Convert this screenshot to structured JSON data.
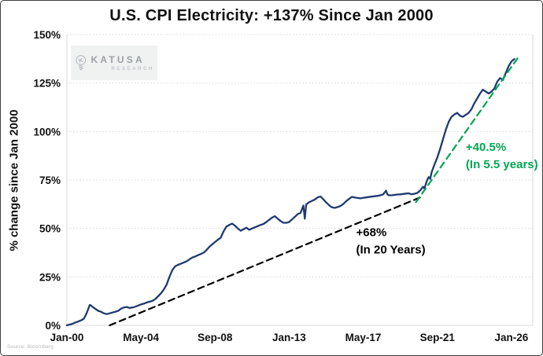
{
  "header": {
    "title": "U.S. CPI Electricity: +137% Since Jan 2000"
  },
  "watermark": {
    "brand": "KATUSA",
    "sub": "RESEARCH",
    "icon": "lightbulb-k-icon",
    "color": "#9aa1a7"
  },
  "footer": {
    "source": "Source: Bloomberg"
  },
  "colors": {
    "cpi_line": "#1f3a70",
    "trend_20y": "#000000",
    "trend_5y": "#00a651",
    "grid": "#d9d9d9",
    "text": "#111111"
  },
  "chart_data": {
    "type": "line",
    "title": "U.S. CPI Electricity: +137% Since Jan 2000",
    "xlabel": "",
    "ylabel": "% change since Jan 2000",
    "x_unit": "months since Jan 2000",
    "ylim": [
      0,
      150
    ],
    "xlim_months": [
      0,
      327
    ],
    "grid": "horizontal-dotted",
    "legend": "none",
    "y_ticks": [
      "0%",
      "25%",
      "50%",
      "75%",
      "100%",
      "125%",
      "150%"
    ],
    "x_ticks": [
      {
        "label": "Jan-00",
        "month": 0
      },
      {
        "label": "May-04",
        "month": 52
      },
      {
        "label": "Sep-08",
        "month": 104
      },
      {
        "label": "Jan-13",
        "month": 156
      },
      {
        "label": "May-17",
        "month": 208
      },
      {
        "label": "Sep-21",
        "month": 260
      },
      {
        "label": "Jan-26",
        "month": 312
      }
    ],
    "series": [
      {
        "id": "cpi-line",
        "name": "U.S. CPI Electricity, % change since Jan 2000",
        "color": "#1f3a70",
        "style": "solid",
        "points": [
          [
            0,
            0
          ],
          [
            2,
            0.4
          ],
          [
            4,
            0.8
          ],
          [
            6,
            1.5
          ],
          [
            8,
            2
          ],
          [
            10,
            2.6
          ],
          [
            12,
            3.5
          ],
          [
            14,
            6.5
          ],
          [
            15,
            8.5
          ],
          [
            16,
            10.5
          ],
          [
            17,
            10.2
          ],
          [
            18,
            9.5
          ],
          [
            20,
            8.5
          ],
          [
            22,
            7.5
          ],
          [
            24,
            7
          ],
          [
            26,
            6.2
          ],
          [
            28,
            5.8
          ],
          [
            30,
            6.2
          ],
          [
            32,
            6.6
          ],
          [
            34,
            7
          ],
          [
            36,
            7.5
          ],
          [
            38,
            8.6
          ],
          [
            40,
            9.2
          ],
          [
            42,
            9.5
          ],
          [
            44,
            9
          ],
          [
            46,
            9.2
          ],
          [
            48,
            9.6
          ],
          [
            50,
            10.2
          ],
          [
            52,
            10.8
          ],
          [
            54,
            11.2
          ],
          [
            56,
            11.8
          ],
          [
            58,
            12.2
          ],
          [
            60,
            12.6
          ],
          [
            62,
            13.5
          ],
          [
            64,
            15
          ],
          [
            66,
            16.5
          ],
          [
            68,
            18.5
          ],
          [
            70,
            21
          ],
          [
            72,
            25
          ],
          [
            74,
            28.5
          ],
          [
            76,
            30.5
          ],
          [
            78,
            31.2
          ],
          [
            80,
            31.8
          ],
          [
            82,
            32.4
          ],
          [
            84,
            33
          ],
          [
            86,
            34
          ],
          [
            88,
            35
          ],
          [
            90,
            35.5
          ],
          [
            92,
            36.2
          ],
          [
            94,
            36.8
          ],
          [
            96,
            37.5
          ],
          [
            98,
            38.8
          ],
          [
            100,
            40.5
          ],
          [
            102,
            41.8
          ],
          [
            104,
            43
          ],
          [
            106,
            44.2
          ],
          [
            108,
            45.2
          ],
          [
            110,
            48.5
          ],
          [
            112,
            51
          ],
          [
            114,
            51.8
          ],
          [
            116,
            52.5
          ],
          [
            118,
            51.4
          ],
          [
            120,
            50
          ],
          [
            122,
            48.8
          ],
          [
            124,
            49.6
          ],
          [
            126,
            50.4
          ],
          [
            128,
            49.3
          ],
          [
            130,
            50
          ],
          [
            132,
            50.6
          ],
          [
            134,
            51.2
          ],
          [
            136,
            51.8
          ],
          [
            138,
            52.3
          ],
          [
            140,
            53.3
          ],
          [
            142,
            54.5
          ],
          [
            144,
            55.6
          ],
          [
            146,
            56.3
          ],
          [
            148,
            55
          ],
          [
            150,
            53.8
          ],
          [
            152,
            52.9
          ],
          [
            154,
            52.9
          ],
          [
            156,
            53.3
          ],
          [
            158,
            54.6
          ],
          [
            160,
            56
          ],
          [
            162,
            57.4
          ],
          [
            164,
            58
          ],
          [
            166,
            61.8
          ],
          [
            167,
            55
          ],
          [
            168,
            62.4
          ],
          [
            170,
            63.5
          ],
          [
            172,
            64.2
          ],
          [
            174,
            64.9
          ],
          [
            176,
            66
          ],
          [
            178,
            66.5
          ],
          [
            180,
            65
          ],
          [
            182,
            63.4
          ],
          [
            184,
            62
          ],
          [
            186,
            60.9
          ],
          [
            188,
            60.6
          ],
          [
            190,
            61
          ],
          [
            192,
            61.6
          ],
          [
            194,
            62.6
          ],
          [
            196,
            64
          ],
          [
            198,
            65.2
          ],
          [
            200,
            66.3
          ],
          [
            202,
            66
          ],
          [
            204,
            65.7
          ],
          [
            206,
            65.5
          ],
          [
            208,
            65.8
          ],
          [
            210,
            66
          ],
          [
            212,
            66.2
          ],
          [
            214,
            66.4
          ],
          [
            216,
            66.6
          ],
          [
            218,
            66.8
          ],
          [
            220,
            67.1
          ],
          [
            222,
            67.6
          ],
          [
            224,
            69.5
          ],
          [
            225,
            67.6
          ],
          [
            226,
            67.1
          ],
          [
            228,
            67.1
          ],
          [
            230,
            67.3
          ],
          [
            232,
            67.5
          ],
          [
            234,
            67.6
          ],
          [
            236,
            67.8
          ],
          [
            238,
            68
          ],
          [
            240,
            68.1
          ],
          [
            242,
            67.6
          ],
          [
            244,
            67.9
          ],
          [
            246,
            68.3
          ],
          [
            248,
            69.6
          ],
          [
            250,
            71.5
          ],
          [
            251,
            70.6
          ],
          [
            252,
            73
          ],
          [
            253,
            75.1
          ],
          [
            254,
            76.5
          ],
          [
            255,
            75.6
          ],
          [
            256,
            79
          ],
          [
            258,
            83
          ],
          [
            260,
            86.6
          ],
          [
            262,
            91
          ],
          [
            264,
            96
          ],
          [
            266,
            101
          ],
          [
            268,
            105
          ],
          [
            270,
            107.6
          ],
          [
            272,
            108.8
          ],
          [
            274,
            109.6
          ],
          [
            276,
            108.1
          ],
          [
            278,
            107.6
          ],
          [
            280,
            108.6
          ],
          [
            282,
            109.6
          ],
          [
            284,
            111.6
          ],
          [
            286,
            114.6
          ],
          [
            288,
            117.1
          ],
          [
            290,
            119.6
          ],
          [
            292,
            121.6
          ],
          [
            294,
            120.6
          ],
          [
            296,
            119.6
          ],
          [
            298,
            120.6
          ],
          [
            300,
            122.1
          ],
          [
            302,
            125.6
          ],
          [
            304,
            127.6
          ],
          [
            306,
            126.6
          ],
          [
            308,
            130.1
          ],
          [
            310,
            133.6
          ],
          [
            312,
            136.1
          ],
          [
            314,
            137.4
          ]
        ]
      },
      {
        "id": "trend-20y-line",
        "name": "+68% trend (In 20 Years)",
        "color": "#000000",
        "style": "dashed",
        "points": [
          [
            30,
            0
          ],
          [
            248,
            66
          ]
        ]
      },
      {
        "id": "trend-5y-line",
        "name": "+40.5% trend (In 5.5 years)",
        "color": "#00a651",
        "style": "dashed",
        "points": [
          [
            245,
            63.5
          ],
          [
            317,
            138.5
          ]
        ]
      }
    ],
    "annotations": [
      {
        "id": "annotation-20y",
        "lines": [
          "+68%",
          "(In 20 Years)"
        ],
        "color": "#000000",
        "anchor_month": 203,
        "anchor_value": 46
      },
      {
        "id": "annotation-5y",
        "lines": [
          "+40.5%",
          "(In 5.5 years)"
        ],
        "color": "#00a651",
        "anchor_month": 280,
        "anchor_value": 90
      }
    ]
  }
}
